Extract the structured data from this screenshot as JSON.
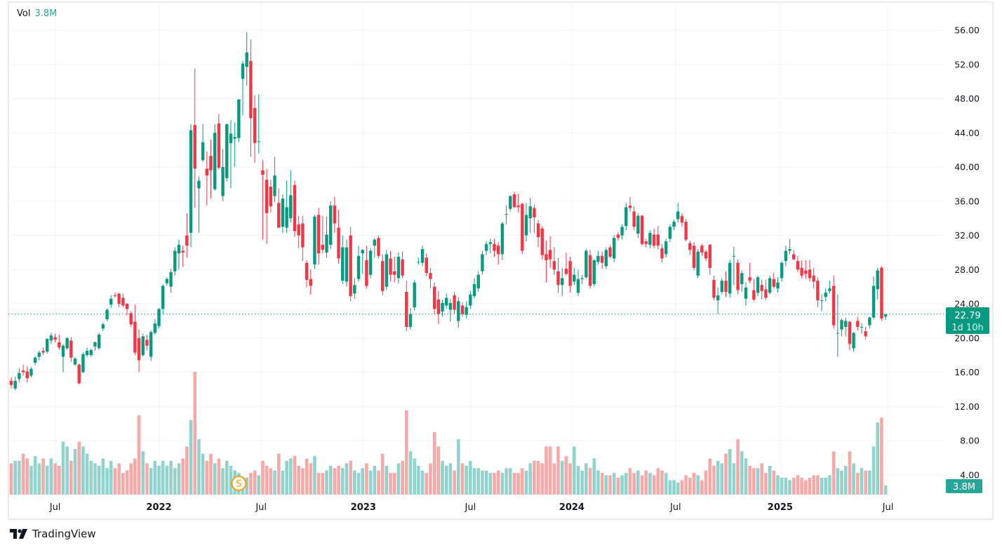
{
  "legend": {
    "label": "Vol",
    "value": "3.8M"
  },
  "brand": {
    "name": "TradingView"
  },
  "colors": {
    "up": "#089981",
    "down": "#f23645",
    "vol_up": "#92d2cc",
    "vol_down": "#f7a9a7",
    "last_price": "#089981",
    "vol_label": "#26a69a",
    "grid": "#f0f3fa",
    "event": "#ff9800"
  },
  "chart_data": {
    "type": "candlestick",
    "title": "",
    "y_ticks": [
      "56.00",
      "52.00",
      "48.00",
      "44.00",
      "40.00",
      "36.00",
      "32.00",
      "28.00",
      "24.00",
      "20.00",
      "16.00",
      "12.00",
      "8.00",
      "4.00"
    ],
    "ylim": [
      0.2,
      58.6
    ],
    "grid": true,
    "x_ticks": [
      {
        "label": "Jul",
        "at": 11,
        "year": false
      },
      {
        "label": "2022",
        "at": 37,
        "year": true
      },
      {
        "label": "Jul",
        "at": 62.6,
        "year": false
      },
      {
        "label": "2023",
        "at": 88.2,
        "year": true
      },
      {
        "label": "Jul",
        "at": 115,
        "year": false
      },
      {
        "label": "2024",
        "at": 140.4,
        "year": true
      },
      {
        "label": "Jul",
        "at": 166.4,
        "year": false
      },
      {
        "label": "2025",
        "at": 192.6,
        "year": true
      },
      {
        "label": "Jul",
        "at": 219.6,
        "year": false
      }
    ],
    "last_price": {
      "value": "22.79",
      "countdown": "1d 10h"
    },
    "last_volume": "3.8M",
    "events": [
      {
        "label": "S",
        "at": 57
      }
    ],
    "candle_fields": [
      "open",
      "high",
      "low",
      "close",
      "volume_M"
    ],
    "candles": [
      [
        15,
        15.4,
        14.1,
        14.5,
        13
      ],
      [
        14.1,
        15.5,
        13.9,
        15,
        14
      ],
      [
        15.2,
        16.5,
        14.8,
        15.9,
        14
      ],
      [
        16.2,
        16.9,
        15.6,
        16,
        17
      ],
      [
        16.1,
        16.7,
        14.8,
        15.3,
        15
      ],
      [
        15.6,
        16.6,
        15.4,
        16.4,
        12
      ],
      [
        17.1,
        17.9,
        16.8,
        17.7,
        16
      ],
      [
        17.8,
        18.5,
        17.4,
        18.3,
        13
      ],
      [
        18.5,
        18.9,
        18,
        18.3,
        15
      ],
      [
        18.4,
        20,
        18.2,
        19.9,
        12
      ],
      [
        19.7,
        20.6,
        19.3,
        20.3,
        15
      ],
      [
        20.1,
        20.5,
        19.5,
        19.8,
        13
      ],
      [
        19.5,
        20.4,
        18.6,
        18.9,
        12
      ],
      [
        17.8,
        19.3,
        16,
        19.1,
        22
      ],
      [
        18.8,
        20.1,
        18.6,
        20,
        20
      ],
      [
        19.7,
        20.1,
        17.2,
        17.7,
        14
      ],
      [
        16.9,
        17.8,
        16.7,
        17.6,
        19
      ],
      [
        16.9,
        17,
        14.6,
        14.7,
        22
      ],
      [
        16,
        18.3,
        15.9,
        18.1,
        20
      ],
      [
        18,
        18.9,
        17.8,
        18.5,
        17
      ],
      [
        18,
        18.8,
        17.8,
        18.6,
        14
      ],
      [
        19,
        19.6,
        18.5,
        19.5,
        13
      ],
      [
        18.8,
        20.6,
        18.6,
        20.4,
        12
      ],
      [
        21.1,
        21.8,
        20.8,
        21.6,
        15
      ],
      [
        22.2,
        23.5,
        22,
        23.3,
        11
      ],
      [
        23.9,
        25,
        23.5,
        24.6,
        14
      ],
      [
        25,
        25.3,
        24.7,
        24.9,
        11
      ],
      [
        25.2,
        25.3,
        23.6,
        24,
        13
      ],
      [
        24.7,
        25.2,
        23.6,
        23.8,
        9
      ],
      [
        24,
        24.1,
        22.6,
        23.4,
        10
      ],
      [
        22.9,
        23.1,
        21.3,
        21.6,
        13
      ],
      [
        21.9,
        23.9,
        18,
        18.3,
        15
      ],
      [
        20,
        21,
        16,
        17.4,
        33
      ],
      [
        18,
        20.5,
        17.8,
        20.2,
        18
      ],
      [
        19.8,
        20.4,
        18.6,
        19.1,
        13
      ],
      [
        17.8,
        20.9,
        17.3,
        20.7,
        11
      ],
      [
        20.6,
        22.2,
        20.4,
        21.7,
        14
      ],
      [
        21.4,
        23.5,
        21.1,
        23.4,
        12
      ],
      [
        23.4,
        26.3,
        22.8,
        26.1,
        14
      ],
      [
        26.4,
        27.1,
        26.1,
        26.9,
        12
      ],
      [
        26,
        28.1,
        25.3,
        27.7,
        14
      ],
      [
        27.8,
        30.6,
        27.3,
        30.2,
        11
      ],
      [
        29.9,
        31.5,
        28,
        30.9,
        13
      ],
      [
        30.2,
        30.8,
        28.3,
        30,
        15
      ],
      [
        32,
        34.6,
        29.4,
        30.8,
        20
      ],
      [
        32.3,
        45,
        30.6,
        44.3,
        31
      ],
      [
        44.9,
        51.5,
        35.2,
        39.8,
        51
      ],
      [
        37.5,
        38.9,
        32.3,
        38.4,
        23
      ],
      [
        40.8,
        45,
        40.6,
        42.9,
        17
      ],
      [
        39.8,
        41.8,
        35.5,
        39,
        14
      ],
      [
        41.3,
        43.2,
        36.3,
        39.6,
        17
      ],
      [
        37.4,
        45,
        37.2,
        44,
        13
      ],
      [
        45.1,
        46.2,
        39.7,
        39.9,
        15
      ],
      [
        36.6,
        42.1,
        36,
        40,
        11
      ],
      [
        38.7,
        45.1,
        38.3,
        45,
        14
      ],
      [
        42.8,
        45.5,
        37.5,
        43.9,
        12
      ],
      [
        43.3,
        45.2,
        40,
        43.5,
        10
      ],
      [
        43.4,
        47.9,
        42.9,
        47.9,
        9
      ],
      [
        50.3,
        52.4,
        46,
        52.1,
        5
      ],
      [
        51.7,
        55.8,
        49.5,
        53.4,
        7
      ],
      [
        52.4,
        54.9,
        41.2,
        45.7,
        9
      ],
      [
        46.9,
        48.4,
        40.5,
        42.8,
        10
      ],
      [
        43,
        48.5,
        41.6,
        43,
        8
      ],
      [
        39.6,
        40.8,
        31.5,
        39.1,
        14
      ],
      [
        38.5,
        39.8,
        31,
        34.6,
        12
      ],
      [
        37.7,
        38.5,
        34.7,
        35.4,
        11
      ],
      [
        36.6,
        41.2,
        35.9,
        39,
        10
      ],
      [
        35.8,
        37.5,
        33.2,
        32.9,
        17
      ],
      [
        33,
        36.8,
        32.3,
        36.3,
        10
      ],
      [
        32.9,
        38.4,
        32.3,
        35.3,
        14
      ],
      [
        34,
        39.6,
        33.5,
        36.7,
        15
      ],
      [
        37.9,
        38.4,
        31.8,
        32.5,
        16
      ],
      [
        33.3,
        34.3,
        30.5,
        32,
        12
      ],
      [
        33.4,
        34.3,
        29,
        30.6,
        11
      ],
      [
        28.8,
        29.1,
        25.9,
        26.8,
        15
      ],
      [
        26.9,
        28,
        25.1,
        26.1,
        13
      ],
      [
        28.6,
        34.4,
        28.1,
        34.2,
        16
      ],
      [
        34.4,
        35.2,
        28.6,
        29.9,
        9
      ],
      [
        30.9,
        34.3,
        29.9,
        30.3,
        9
      ],
      [
        30,
        34.2,
        29.4,
        32.1,
        10
      ],
      [
        30.9,
        36,
        30.4,
        35.5,
        12
      ],
      [
        35.5,
        36.5,
        32.3,
        33.4,
        11
      ],
      [
        32.9,
        35,
        28.7,
        29.3,
        12
      ],
      [
        26.7,
        32,
        26.3,
        30.6,
        11
      ],
      [
        26.6,
        31.5,
        26,
        30.6,
        13
      ],
      [
        32,
        33,
        24.3,
        24.9,
        14
      ],
      [
        25.2,
        27,
        24.6,
        26.2,
        10
      ],
      [
        26.9,
        30.8,
        26.6,
        29.6,
        9
      ],
      [
        29.9,
        30.4,
        27.5,
        30.3,
        11
      ],
      [
        29.1,
        30.8,
        25.8,
        26.1,
        13
      ],
      [
        27.4,
        30.5,
        27,
        30.2,
        10
      ],
      [
        30.8,
        31.7,
        29.4,
        31.5,
        12
      ],
      [
        31.7,
        32,
        29.3,
        29.6,
        10
      ],
      [
        29,
        29.8,
        25,
        25.5,
        17
      ],
      [
        26,
        30.3,
        25.6,
        29.8,
        12
      ],
      [
        29.3,
        30.2,
        26.6,
        27.4,
        9
      ],
      [
        27.8,
        29.5,
        26.5,
        27.4,
        9
      ],
      [
        27,
        30,
        26.4,
        29.5,
        13
      ],
      [
        29.2,
        30.1,
        27,
        27.3,
        14
      ],
      [
        25.4,
        26.7,
        20.8,
        21.3,
        35
      ],
      [
        21.3,
        23.5,
        21,
        22.8,
        18
      ],
      [
        23.6,
        26.8,
        23.2,
        26.5,
        15
      ],
      [
        28.9,
        29.4,
        28.6,
        28.9,
        12
      ],
      [
        28.8,
        30.8,
        28.4,
        30.4,
        10
      ],
      [
        29.4,
        29.9,
        27.2,
        27.6,
        9
      ],
      [
        27.6,
        28.2,
        25.8,
        26.9,
        13
      ],
      [
        26,
        26.5,
        22.8,
        23.4,
        26
      ],
      [
        24.5,
        25.5,
        21.6,
        22.8,
        20
      ],
      [
        23.1,
        24.5,
        22.5,
        24.1,
        14
      ],
      [
        23.8,
        25.2,
        23.4,
        24.7,
        12
      ],
      [
        23.3,
        24.6,
        21.9,
        24.1,
        13
      ],
      [
        25,
        25.4,
        22.8,
        23.3,
        10
      ],
      [
        22,
        24.8,
        21.2,
        24.3,
        23
      ],
      [
        23.8,
        24.2,
        22.5,
        22.8,
        13
      ],
      [
        22.7,
        24.3,
        22.3,
        23.6,
        12
      ],
      [
        23.8,
        25.5,
        23.4,
        25.1,
        14
      ],
      [
        24.9,
        27,
        24.6,
        26.3,
        11
      ],
      [
        25.8,
        27.8,
        25.4,
        27.4,
        11
      ],
      [
        27.8,
        30.2,
        27.4,
        29.8,
        10
      ],
      [
        30.2,
        31.3,
        29.7,
        31,
        10
      ],
      [
        31,
        31.6,
        29.9,
        31.2,
        9
      ],
      [
        31,
        31.6,
        29.5,
        30.2,
        9
      ],
      [
        30.8,
        31.2,
        28.6,
        29.8,
        10
      ],
      [
        29.8,
        33.6,
        29.1,
        33.4,
        9
      ],
      [
        34.5,
        35.5,
        33.3,
        34.5,
        11
      ],
      [
        35.1,
        36.7,
        34.8,
        36.6,
        11
      ],
      [
        36.8,
        37.1,
        35.2,
        35.3,
        9
      ],
      [
        35.5,
        36.9,
        34.7,
        35.3,
        9
      ],
      [
        35.7,
        35.8,
        29.8,
        30.2,
        11
      ],
      [
        32,
        35.8,
        31.3,
        34.4,
        10
      ],
      [
        34,
        36.4,
        32.3,
        35.4,
        13
      ],
      [
        35.2,
        35.6,
        32.3,
        34.1,
        14
      ],
      [
        33.4,
        33.8,
        30.6,
        31.8,
        14
      ],
      [
        32.8,
        33.1,
        29.2,
        29.7,
        13
      ],
      [
        29.8,
        31.4,
        26.5,
        29.1,
        20
      ],
      [
        30.3,
        31.9,
        28.2,
        29.2,
        20
      ],
      [
        29,
        30.6,
        27.4,
        28,
        13
      ],
      [
        27.8,
        29.4,
        25.3,
        26.2,
        20
      ],
      [
        26.2,
        28.2,
        24.9,
        27,
        14
      ],
      [
        28.1,
        30,
        27.3,
        27.5,
        16
      ],
      [
        29,
        29.5,
        25.3,
        26.1,
        13
      ],
      [
        26.6,
        28.2,
        26.2,
        27.4,
        20
      ],
      [
        25.3,
        28,
        24.9,
        26.9,
        12
      ],
      [
        26.9,
        27.4,
        26.3,
        27,
        10
      ],
      [
        27.1,
        30.4,
        26.9,
        30.2,
        13
      ],
      [
        29.7,
        30.3,
        25.8,
        26.1,
        11
      ],
      [
        26.3,
        29.2,
        26,
        29.1,
        15
      ],
      [
        28.9,
        30.2,
        28.6,
        29.6,
        10
      ],
      [
        29.6,
        30.1,
        28.1,
        28.8,
        9
      ],
      [
        28.4,
        30.6,
        28.1,
        30.3,
        8
      ],
      [
        30.6,
        30.9,
        29.3,
        29.5,
        8
      ],
      [
        29.3,
        32,
        28.9,
        31.7,
        9
      ],
      [
        32.1,
        32.4,
        31.4,
        31.7,
        7
      ],
      [
        32,
        33.3,
        31.5,
        33,
        8
      ],
      [
        33.1,
        35.8,
        32.6,
        35.3,
        9
      ],
      [
        35.5,
        36.5,
        34.8,
        35.2,
        11
      ],
      [
        34.8,
        35.4,
        32.6,
        33,
        9
      ],
      [
        32.2,
        34.6,
        31.7,
        34.3,
        10
      ],
      [
        34.3,
        34.4,
        30.8,
        31,
        8
      ],
      [
        31.3,
        31.6,
        30.6,
        31,
        10
      ],
      [
        30.9,
        32.6,
        30.5,
        32.3,
        9
      ],
      [
        32.1,
        32.8,
        30.5,
        30.8,
        8
      ],
      [
        32.1,
        33.1,
        30.4,
        30.8,
        11
      ],
      [
        30.5,
        31,
        28.8,
        29.3,
        10
      ],
      [
        29.8,
        31.6,
        29.4,
        31.3,
        9
      ],
      [
        31.6,
        33.3,
        31.2,
        33,
        6
      ],
      [
        33,
        33.8,
        32.6,
        33.6,
        6
      ],
      [
        33.9,
        35.8,
        33.5,
        34.8,
        5
      ],
      [
        34.3,
        34.6,
        33,
        33.5,
        6
      ],
      [
        33.6,
        33.9,
        31.3,
        31.5,
        8
      ],
      [
        31.1,
        31.4,
        29.7,
        30.3,
        7
      ],
      [
        30.8,
        31.2,
        27.9,
        28.2,
        9
      ],
      [
        27.3,
        30.4,
        27,
        30.1,
        8
      ],
      [
        30.8,
        31,
        29.6,
        30,
        6
      ],
      [
        30.1,
        30.3,
        29,
        29.3,
        10
      ],
      [
        30.9,
        31,
        27.4,
        28.2,
        15
      ],
      [
        26.8,
        27.3,
        24.4,
        24.7,
        12
      ],
      [
        24.4,
        25.9,
        22.8,
        25,
        14
      ],
      [
        25.4,
        27,
        25.1,
        26.7,
        13
      ],
      [
        26.7,
        27.8,
        24.8,
        25.4,
        17
      ],
      [
        25.2,
        29.2,
        24.7,
        28.8,
        19
      ],
      [
        29.6,
        30.7,
        26.2,
        29.6,
        13
      ],
      [
        28.8,
        29.2,
        25.1,
        25.6,
        23
      ],
      [
        26.3,
        27.9,
        25.4,
        27.6,
        18
      ],
      [
        24.6,
        26.5,
        23.8,
        25.9,
        15
      ],
      [
        27.1,
        28.8,
        26.4,
        26.7,
        12
      ],
      [
        25.6,
        26.9,
        24.3,
        24.5,
        11
      ],
      [
        25.3,
        27.3,
        24.9,
        27.1,
        11
      ],
      [
        26.2,
        26.8,
        24.5,
        25.5,
        13
      ],
      [
        25.7,
        26.8,
        24.4,
        24.7,
        9
      ],
      [
        25.3,
        27.3,
        25.1,
        27,
        12
      ],
      [
        26.9,
        27.6,
        25.8,
        26,
        10
      ],
      [
        25.8,
        27.1,
        25.3,
        26.5,
        8
      ],
      [
        27,
        29,
        26.6,
        28.8,
        7
      ],
      [
        29,
        30.8,
        28.4,
        30.2,
        7
      ],
      [
        30.2,
        31.6,
        29.8,
        30.4,
        6
      ],
      [
        29.8,
        30.3,
        29.1,
        29.2,
        7
      ],
      [
        29,
        29.6,
        27.7,
        28,
        8
      ],
      [
        28.2,
        29.1,
        27,
        27.3,
        7
      ],
      [
        27.9,
        29.1,
        26.9,
        27.5,
        6
      ],
      [
        28,
        29.1,
        26.6,
        27,
        7
      ],
      [
        27.3,
        28.2,
        25.8,
        26.6,
        8
      ],
      [
        26.7,
        27.1,
        23.6,
        24.4,
        8
      ],
      [
        24.4,
        25.1,
        23.1,
        24.4,
        7
      ],
      [
        24.8,
        25.8,
        24.3,
        25.3,
        7
      ],
      [
        25.5,
        26.7,
        25.2,
        25.8,
        8
      ],
      [
        26.1,
        27.3,
        21.1,
        21.5,
        18
      ],
      [
        20.6,
        25.1,
        17.8,
        20.6,
        11
      ],
      [
        21,
        22.3,
        20.2,
        22.1,
        10
      ],
      [
        21.3,
        22.4,
        20.2,
        22,
        12
      ],
      [
        21.9,
        22,
        18.6,
        19.3,
        18
      ],
      [
        18.8,
        20.7,
        18.4,
        20.6,
        13
      ],
      [
        22,
        22.5,
        20.9,
        21.3,
        9
      ],
      [
        21.3,
        21.7,
        20.5,
        21.3,
        11
      ],
      [
        20.8,
        21.3,
        19.8,
        20.2,
        10
      ],
      [
        21.5,
        22.5,
        21.1,
        22.4,
        10
      ],
      [
        22.4,
        27.2,
        22.2,
        26.1,
        20
      ],
      [
        25.7,
        28.2,
        24.5,
        27.9,
        30
      ],
      [
        28.2,
        28.4,
        22,
        22.3,
        32
      ],
      [
        22.5,
        22.8,
        22.1,
        22.79,
        3.8
      ]
    ]
  }
}
